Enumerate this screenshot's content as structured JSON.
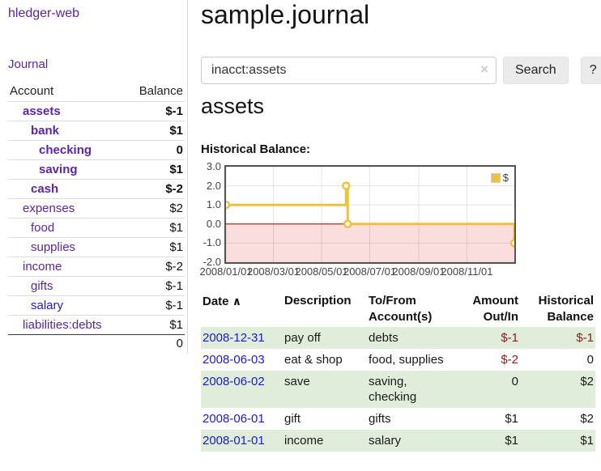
{
  "sidebar": {
    "app_title": "hledger-web",
    "journal_link": "Journal",
    "accounts_header": {
      "account": "Account",
      "balance": "Balance"
    },
    "accounts": [
      {
        "name": "assets",
        "depth": 1,
        "bold": true,
        "balance": "$-1",
        "balance_style": "neg"
      },
      {
        "name": "bank",
        "depth": 2,
        "bold": true,
        "balance": "$1",
        "balance_style": "pos"
      },
      {
        "name": "checking",
        "depth": 3,
        "bold": true,
        "balance": "0",
        "balance_style": "pos"
      },
      {
        "name": "saving",
        "depth": 3,
        "bold": true,
        "balance": "$1",
        "balance_style": "pos"
      },
      {
        "name": "cash",
        "depth": 2,
        "bold": true,
        "balance": "$-2",
        "balance_style": "neg"
      },
      {
        "name": "expenses",
        "depth": 1,
        "bold": false,
        "balance": "$2",
        "balance_style": "pos"
      },
      {
        "name": "food",
        "depth": 2,
        "bold": false,
        "balance": "$1",
        "balance_style": "pos"
      },
      {
        "name": "supplies",
        "depth": 2,
        "bold": false,
        "balance": "$1",
        "balance_style": "pos"
      },
      {
        "name": "income",
        "depth": 1,
        "bold": false,
        "balance": "$-2",
        "balance_style": "negmuted"
      },
      {
        "name": "gifts",
        "depth": 2,
        "bold": false,
        "balance": "$-1",
        "balance_style": "negmuted"
      },
      {
        "name": "salary",
        "depth": 2,
        "bold": false,
        "balance": "$-1",
        "balance_style": "negmuted",
        "link_color": "blue"
      },
      {
        "name": "liabilities:debts",
        "depth": 1,
        "bold": false,
        "balance": "$1",
        "balance_style": "pos"
      }
    ],
    "total": "0"
  },
  "main": {
    "title": "sample.journal",
    "account_heading": "assets",
    "chart_label": "Historical Balance:"
  },
  "search": {
    "value": "inacct:assets",
    "clear_icon": "×",
    "button_label": "Search",
    "help_label": "?"
  },
  "chart_data": {
    "type": "line",
    "step": true,
    "title": "Historical Balance:",
    "series": [
      {
        "name": "$",
        "color": "#edc240",
        "points": [
          {
            "date": "2008-01-01",
            "value": 1
          },
          {
            "date": "2008-06-01",
            "value": 2
          },
          {
            "date": "2008-06-03",
            "value": 0
          },
          {
            "date": "2008-12-31",
            "value": -1
          }
        ]
      }
    ],
    "xlim": [
      "2008-01-01",
      "2008-12-31"
    ],
    "ylim": [
      -2,
      3
    ],
    "x_tick_labels": [
      "2008/01/01",
      "2008/03/01",
      "2008/05/01",
      "2008/07/01",
      "2008/09/01",
      "2008/11/01"
    ],
    "y_ticks": [
      3,
      2,
      1,
      0,
      -1,
      -2
    ],
    "grid": true,
    "grid_color": "rgba(0,0,0,0.10)",
    "border_color": "#545454",
    "negative_region_color": "#fadddd",
    "zero_line_color": "#a30000",
    "legend_position": "top-right"
  },
  "register": {
    "sort_icon": "∧",
    "columns": [
      {
        "line1": "Date",
        "line2": "",
        "align": "left",
        "sorted": true
      },
      {
        "line1": "Description",
        "line2": "",
        "align": "left"
      },
      {
        "line1": "To/From",
        "line2": "Account(s)",
        "align": "left"
      },
      {
        "line1": "Amount",
        "line2": "Out/In",
        "align": "right"
      },
      {
        "line1": "Historical",
        "line2": "Balance",
        "align": "right"
      }
    ],
    "rows": [
      {
        "date": "2008-12-31",
        "description": "pay off",
        "accounts": "debts",
        "amount": "$-1",
        "amount_neg": true,
        "balance": "$-1",
        "balance_neg": true
      },
      {
        "date": "2008-06-03",
        "description": "eat & shop",
        "accounts": "food, supplies",
        "amount": "$-2",
        "amount_neg": true,
        "balance": "0",
        "balance_neg": false
      },
      {
        "date": "2008-06-02",
        "description": "save",
        "accounts": "saving,\nchecking",
        "amount": "0",
        "amount_neg": false,
        "balance": "$2",
        "balance_neg": false
      },
      {
        "date": "2008-06-01",
        "description": "gift",
        "accounts": "gifts",
        "amount": "$1",
        "amount_neg": false,
        "balance": "$2",
        "balance_neg": false
      },
      {
        "date": "2008-01-01",
        "description": "income",
        "accounts": "salary",
        "amount": "$1",
        "amount_neg": false,
        "balance": "$1",
        "balance_neg": false
      }
    ]
  }
}
